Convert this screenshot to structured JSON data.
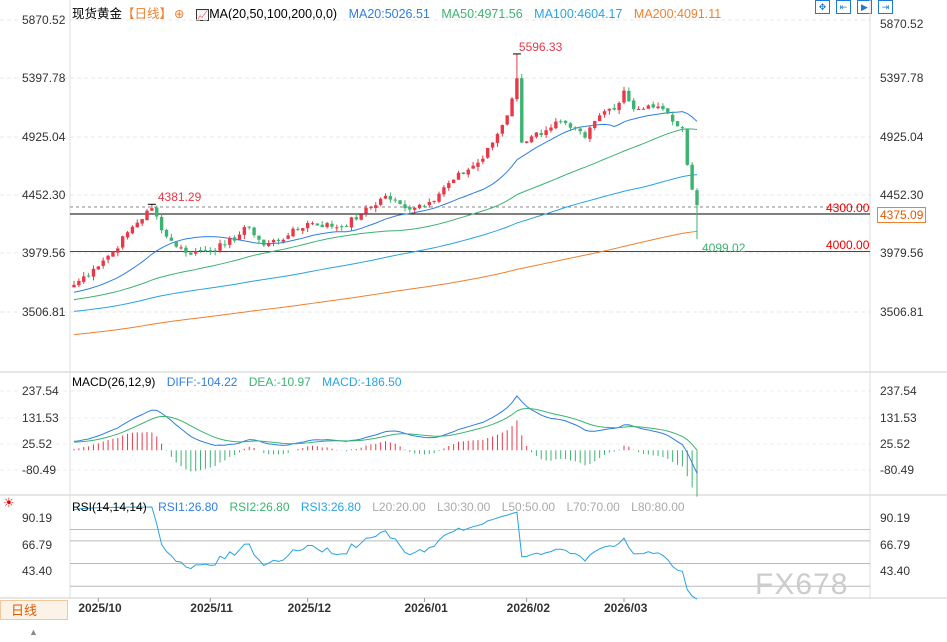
{
  "header": {
    "symbol": "现货黄金",
    "period": "【日线】",
    "ma_label": "MA(20,50,100,200,0,0)",
    "ma20": "MA20:5026.51",
    "ma50": "MA50:4971.56",
    "ma100": "MA100:4604.17",
    "ma200": "MA200:4091.11"
  },
  "macd_legend": {
    "label": "MACD(26,12,9)",
    "diff": "DIFF:-104.22",
    "dea": "DEA:-10.97",
    "macd": "MACD:-186.50"
  },
  "rsi_legend": {
    "label": "RSI(14,14,14)",
    "rsi1": "RSI1:26.80",
    "rsi2": "RSI2:26.80",
    "rsi3": "RSI3:26.80",
    "l20": "L20:20.00",
    "l30": "L30:30.00",
    "l50": "L50:50.00",
    "l70": "L70:70.00",
    "l80": "L80:80.00"
  },
  "period_button": "日线",
  "watermark": "FX678",
  "colors": {
    "up": "#e8394a",
    "down": "#3cb371",
    "ma20": "#2f7fe0",
    "ma50": "#3cb371",
    "ma100": "#2aa3e0",
    "ma200": "#f08030",
    "accent": "#e05a00"
  },
  "chart_data": {
    "type": "candlestick",
    "price_ticks": [
      "5870.52",
      "5397.78",
      "4925.04",
      "4452.30",
      "3979.56",
      "3506.81"
    ],
    "macd_ticks": [
      "237.54",
      "131.53",
      "25.52",
      "-80.49"
    ],
    "rsi_ticks": [
      "90.19",
      "66.79",
      "43.40"
    ],
    "date_ticks": [
      {
        "date": "2025-10-01",
        "label": "2025/10"
      },
      {
        "date": "2025-11-03",
        "label": "2025/11"
      },
      {
        "date": "2025-12-01",
        "label": "2025/12"
      },
      {
        "date": "2026-01-02",
        "label": "2026/01"
      },
      {
        "date": "2026-02-02",
        "label": "2026/02"
      },
      {
        "date": "2026-03-02",
        "label": "2026/03"
      }
    ],
    "approx_closes": [
      [
        "2025-09-24",
        3730
      ],
      [
        "2025-09-30",
        3860
      ],
      [
        "2025-10-06",
        4000
      ],
      [
        "2025-10-10",
        4200
      ],
      [
        "2025-10-16",
        4350
      ],
      [
        "2025-10-21",
        4120
      ],
      [
        "2025-10-27",
        3990
      ],
      [
        "2025-10-31",
        4010
      ],
      [
        "2025-11-06",
        4050
      ],
      [
        "2025-11-13",
        4200
      ],
      [
        "2025-11-18",
        4050
      ],
      [
        "2025-11-25",
        4130
      ],
      [
        "2025-12-01",
        4230
      ],
      [
        "2025-12-10",
        4200
      ],
      [
        "2025-12-16",
        4300
      ],
      [
        "2025-12-23",
        4450
      ],
      [
        "2025-12-29",
        4350
      ],
      [
        "2026-01-05",
        4400
      ],
      [
        "2026-01-12",
        4580
      ],
      [
        "2026-01-20",
        4750
      ],
      [
        "2026-01-23",
        4950
      ],
      [
        "2026-01-27",
        5100
      ],
      [
        "2026-01-29",
        5400
      ],
      [
        "2026-01-30",
        4880
      ],
      [
        "2026-02-03",
        4930
      ],
      [
        "2026-02-06",
        4980
      ],
      [
        "2026-02-10",
        5050
      ],
      [
        "2026-02-13",
        5000
      ],
      [
        "2026-02-18",
        4920
      ],
      [
        "2026-02-23",
        5100
      ],
      [
        "2026-02-27",
        5200
      ],
      [
        "2026-03-02",
        5300
      ],
      [
        "2026-03-04",
        5150
      ],
      [
        "2026-03-09",
        5180
      ],
      [
        "2026-03-12",
        5150
      ],
      [
        "2026-03-16",
        5050
      ],
      [
        "2026-03-18",
        5000
      ],
      [
        "2026-03-19",
        4700
      ],
      [
        "2026-03-20",
        4500
      ],
      [
        "2026-03-23",
        4375
      ]
    ],
    "high_label": "5596.33",
    "high_date": "2026-01-29",
    "local_high_label": "4381.29",
    "local_high_date": "2025-10-16",
    "low_label": "4099.02",
    "current_price": "4375.09",
    "levels": [
      {
        "value": 4300,
        "label": "4300.00",
        "color": "#000"
      },
      {
        "value": 4000,
        "label": "4000.00",
        "color": "#e00"
      }
    ]
  }
}
